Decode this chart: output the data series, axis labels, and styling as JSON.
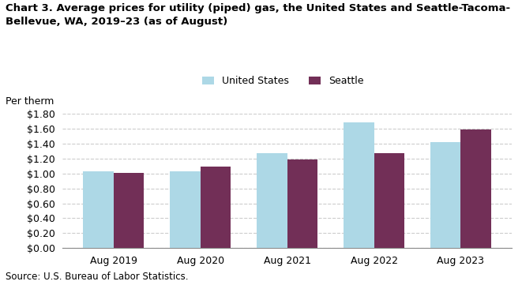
{
  "title": "Chart 3. Average prices for utility (piped) gas, the United States and Seattle-Tacoma-\nBellevue, WA, 2019–23 (as of August)",
  "per_therm_label": "Per therm",
  "source": "Source: U.S. Bureau of Labor Statistics.",
  "categories": [
    "Aug 2019",
    "Aug 2020",
    "Aug 2021",
    "Aug 2022",
    "Aug 2023"
  ],
  "us_values": [
    1.03,
    1.03,
    1.27,
    1.69,
    1.42
  ],
  "seattle_values": [
    1.01,
    1.09,
    1.19,
    1.27,
    1.59
  ],
  "us_color": "#add8e6",
  "seattle_color": "#722f57",
  "us_label": "United States",
  "seattle_label": "Seattle",
  "ylim": [
    0,
    1.8
  ],
  "yticks": [
    0.0,
    0.2,
    0.4,
    0.6,
    0.8,
    1.0,
    1.2,
    1.4,
    1.6,
    1.8
  ],
  "bar_width": 0.35,
  "title_fontsize": 9.5,
  "axis_fontsize": 9,
  "legend_fontsize": 9,
  "source_fontsize": 8.5,
  "background_color": "#ffffff",
  "grid_color": "#cccccc"
}
